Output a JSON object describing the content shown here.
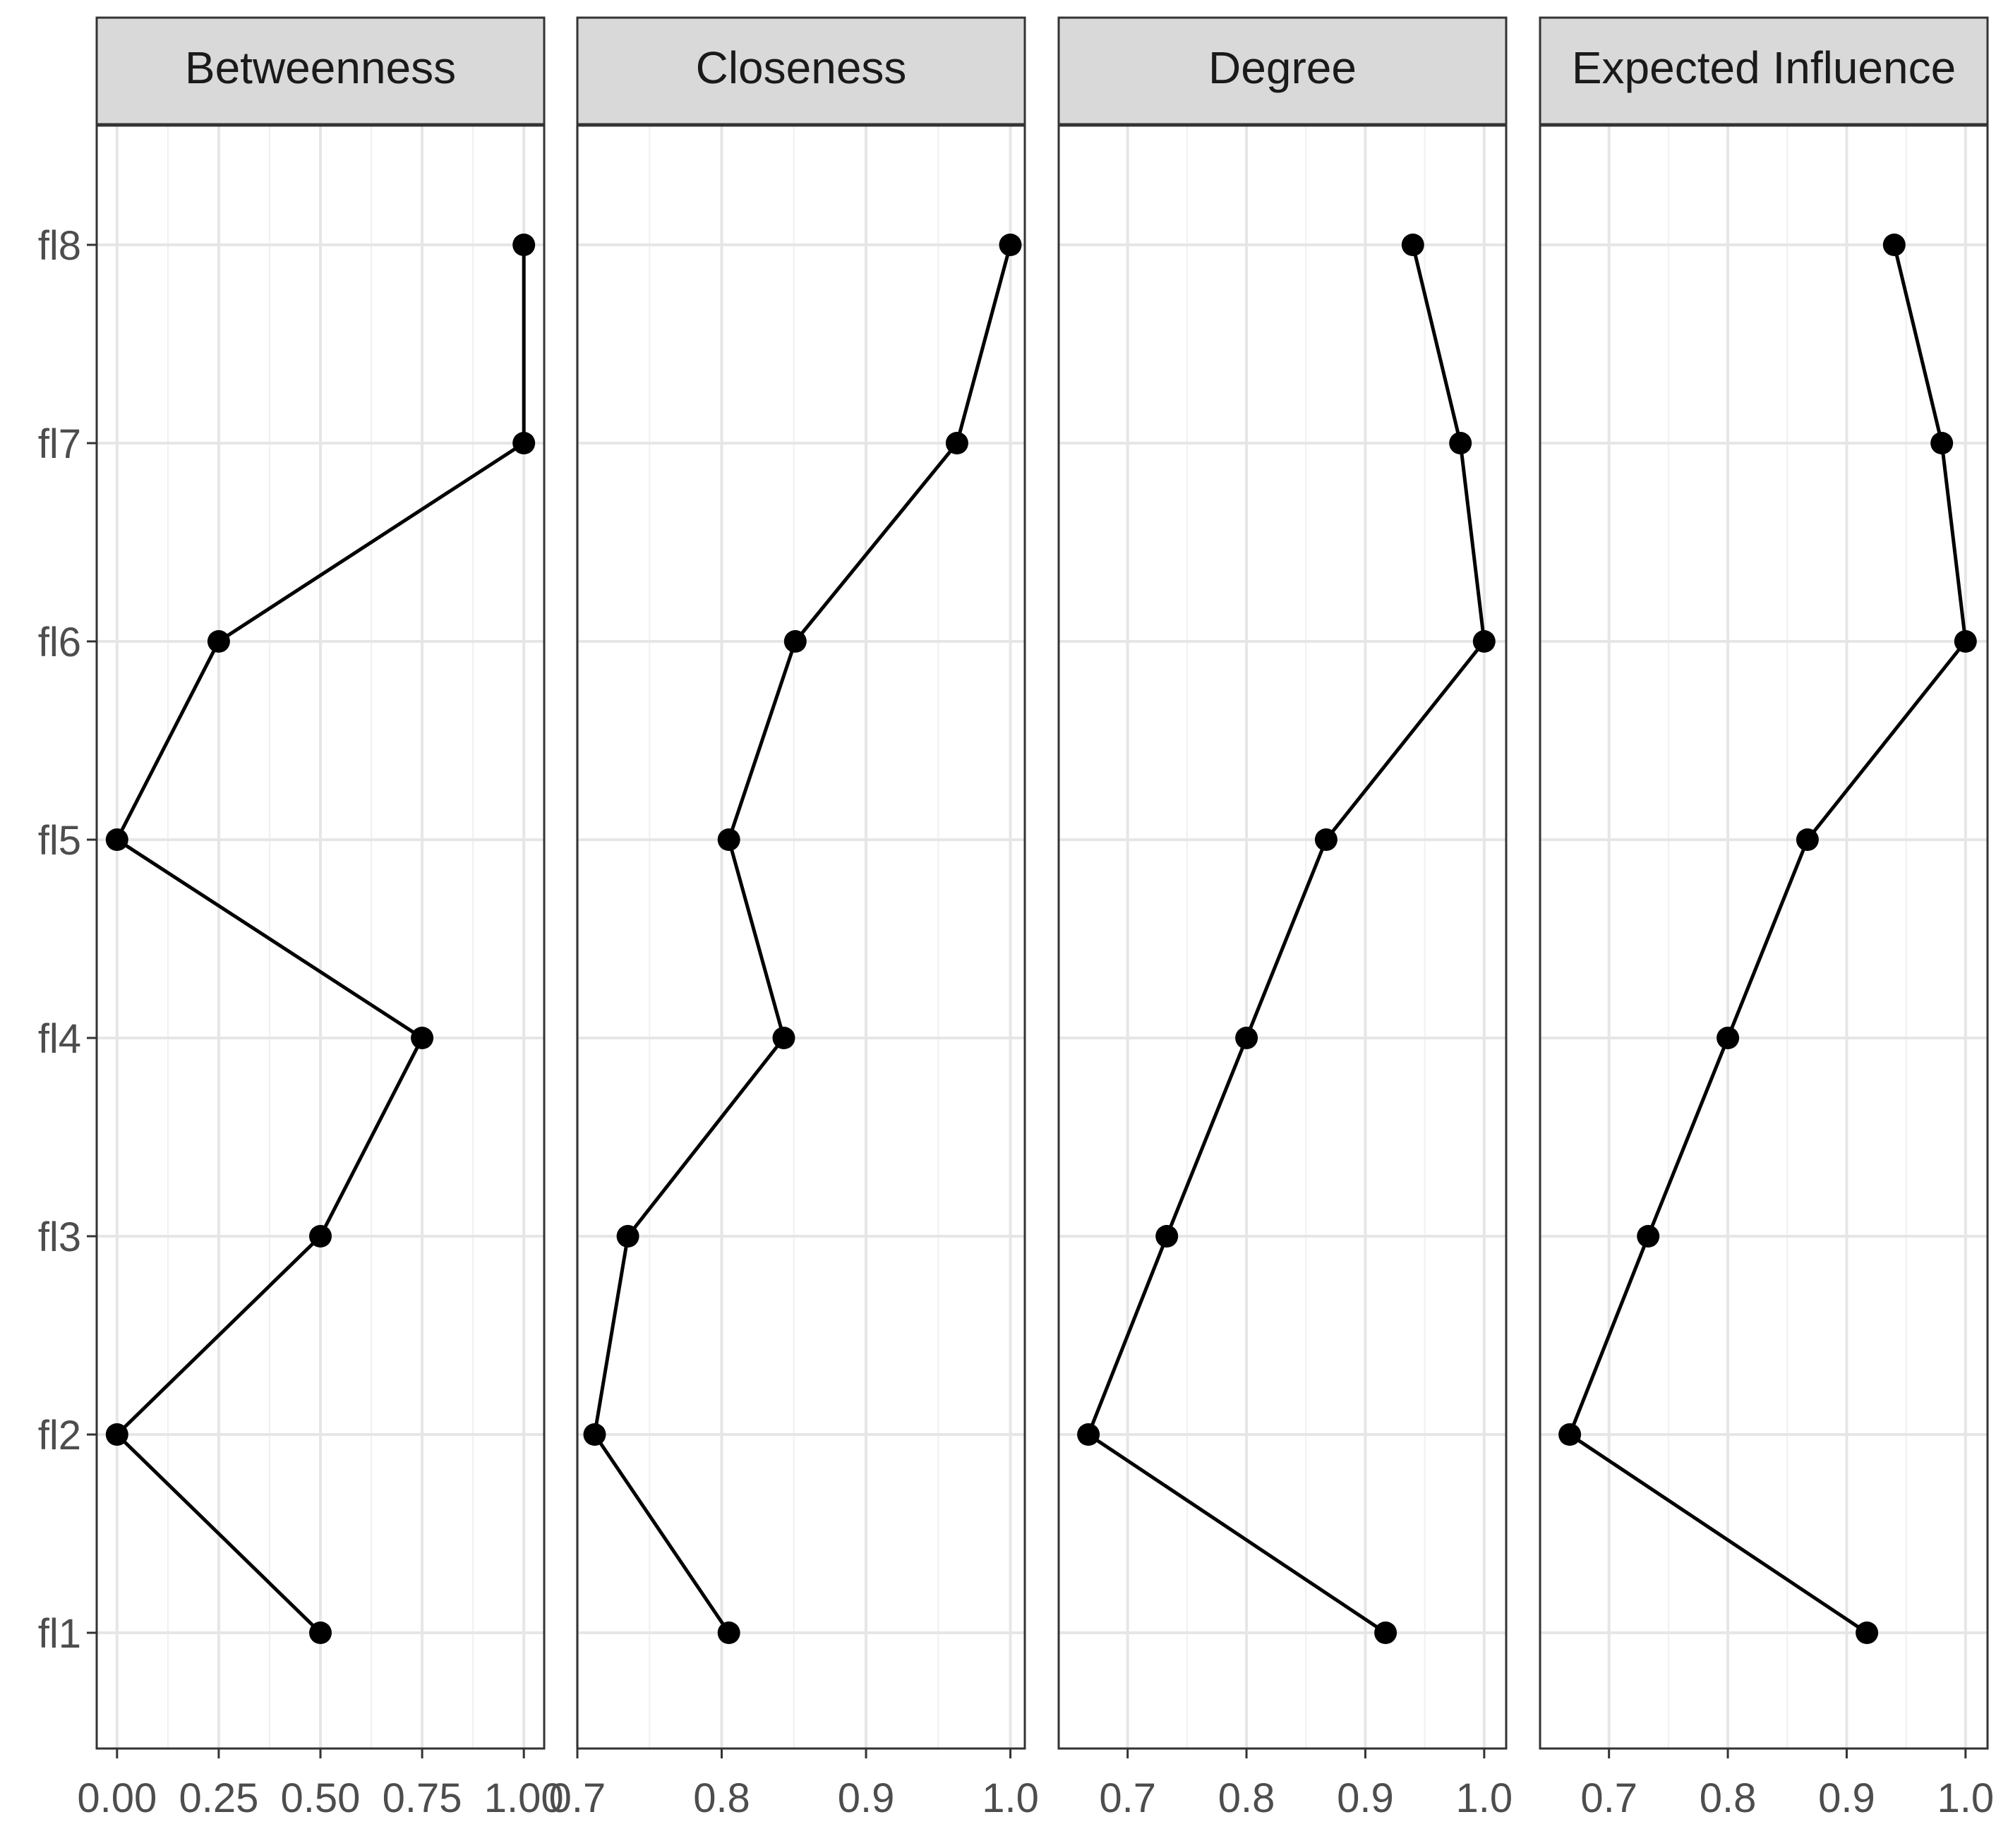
{
  "chart_data": {
    "type": "line",
    "categories": [
      "fl1",
      "fl2",
      "fl3",
      "fl4",
      "fl5",
      "fl6",
      "fl7",
      "fl8"
    ],
    "grid": true,
    "legend": "none",
    "orientation": "horizontal-values",
    "series_color": "#000000",
    "panels": [
      {
        "name": "Betweenness",
        "values": [
          0.5,
          0.0,
          0.5,
          0.75,
          0.0,
          0.25,
          1.0,
          1.0
        ],
        "xlim": [
          -0.05,
          1.05
        ],
        "ticks": [
          0,
          0.25,
          0.5,
          0.75,
          1.0
        ],
        "tick_labels": [
          "0.00",
          "0.25",
          "0.50",
          "0.75",
          "1.00"
        ]
      },
      {
        "name": "Closeness",
        "values": [
          0.805,
          0.712,
          0.735,
          0.843,
          0.805,
          0.851,
          0.963,
          1.0
        ],
        "xlim": [
          0.7,
          1.01
        ],
        "ticks": [
          0.7,
          0.8,
          0.9,
          1.0
        ],
        "tick_labels": [
          "0.7",
          "0.8",
          "0.9",
          "1.0"
        ]
      },
      {
        "name": "Degree",
        "values": [
          0.917,
          0.667,
          0.733,
          0.8,
          0.867,
          1.0,
          0.98,
          0.94
        ],
        "xlim": [
          0.642,
          1.0185
        ],
        "ticks": [
          0.7,
          0.8,
          0.9,
          1.0
        ],
        "tick_labels": [
          "0.7",
          "0.8",
          "0.9",
          "1.0"
        ]
      },
      {
        "name": "Expected Influence",
        "values": [
          0.917,
          0.667,
          0.733,
          0.8,
          0.867,
          1.0,
          0.98,
          0.94
        ],
        "xlim": [
          0.642,
          1.0185
        ],
        "ticks": [
          0.7,
          0.8,
          0.9,
          1.0
        ],
        "tick_labels": [
          "0.7",
          "0.8",
          "0.9",
          "1.0"
        ]
      }
    ]
  }
}
